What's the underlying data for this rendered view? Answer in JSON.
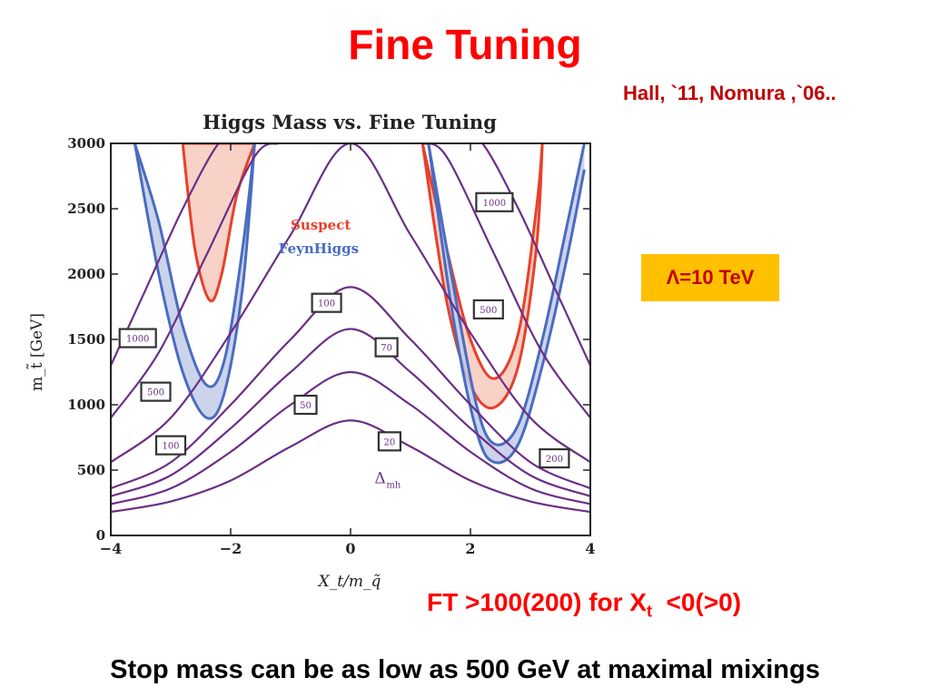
{
  "slide": {
    "title": "Fine Tuning",
    "citation": "Hall, `11, Nomura ,`06..",
    "lambda_label": "Λ=10 TeV",
    "ft_note_main": "FT >100(200) for X",
    "ft_note_sub": "t",
    "ft_note_tail": "  <0(>0)",
    "conclusion": "Stop mass can be as low as 500 GeV at maximal mixings"
  },
  "colors": {
    "title": "#ff0000",
    "citation": "#c00000",
    "lambda_bg": "#ffc000",
    "suspect": "#e8402a",
    "suspect_fill": "#f7c9bd",
    "feynhiggs": "#4a6cc0",
    "feynhiggs_fill": "#c3cde8",
    "contour": "#6b2e86",
    "overlap_fill": "#c9a7c4"
  },
  "chart_data": {
    "type": "line",
    "title": "Higgs Mass vs. Fine Tuning",
    "xlabel": "X_t/m_q̃",
    "ylabel": "m_t̃ [GeV]",
    "xlim": [
      -4,
      4
    ],
    "ylim": [
      0,
      3000
    ],
    "xticks": [
      "-4",
      "-2",
      "0",
      "2",
      "4"
    ],
    "yticks": [
      "0",
      "500",
      "1000",
      "1500",
      "2000",
      "2500",
      "3000"
    ],
    "legend": {
      "placement": "center",
      "entries": [
        "Suspect",
        "FeynHiggs"
      ]
    },
    "contour_symbol": "Δ_mh",
    "series": [
      {
        "name": "Δ",
        "level": 20,
        "x": [
          -4,
          -3,
          -2,
          -1,
          0,
          1,
          2,
          3,
          4
        ],
        "values": [
          180,
          260,
          420,
          680,
          880,
          680,
          420,
          260,
          180
        ]
      },
      {
        "name": "Δ",
        "level": 50,
        "x": [
          -4,
          -3,
          -2,
          -1,
          0,
          1,
          2,
          3,
          4
        ],
        "values": [
          240,
          360,
          640,
          1000,
          1250,
          1000,
          640,
          360,
          240
        ]
      },
      {
        "name": "Δ",
        "level": 70,
        "x": [
          -4,
          -3,
          -2,
          -1,
          0,
          1,
          2,
          3,
          4
        ],
        "values": [
          300,
          460,
          820,
          1250,
          1580,
          1250,
          820,
          460,
          300
        ]
      },
      {
        "name": "Δ",
        "level": 100,
        "x": [
          -4,
          -3,
          -2,
          -1,
          0,
          1,
          2,
          3,
          4
        ],
        "values": [
          360,
          560,
          1000,
          1500,
          1900,
          1500,
          1000,
          560,
          360
        ]
      },
      {
        "name": "Δ",
        "level": 200,
        "x": [
          -4,
          -3,
          -2,
          -1,
          0,
          1,
          2,
          3,
          4
        ],
        "values": [
          560,
          900,
          1550,
          2300,
          3000,
          2300,
          1550,
          900,
          560
        ]
      },
      {
        "name": "Δ",
        "level": 500,
        "x": [
          -4,
          -3.2,
          -2.4,
          -1.6,
          -1.2
        ],
        "values": [
          900,
          1400,
          2150,
          2900,
          3000
        ]
      },
      {
        "name": "Δ",
        "level": 1000,
        "x": [
          -4,
          -3.4,
          -2.8,
          -2.2,
          -1.9
        ],
        "values": [
          1300,
          1900,
          2500,
          3000,
          3000
        ]
      }
    ],
    "contour_labels": [
      {
        "text": "1000",
        "x": -3.55,
        "y": 1510
      },
      {
        "text": "500",
        "x": -3.25,
        "y": 1100
      },
      {
        "text": "100",
        "x": -3.0,
        "y": 690
      },
      {
        "text": "100",
        "x": -0.4,
        "y": 1780
      },
      {
        "text": "70",
        "x": 0.6,
        "y": 1440
      },
      {
        "text": "50",
        "x": -0.75,
        "y": 1000
      },
      {
        "text": "20",
        "x": 0.65,
        "y": 720
      },
      {
        "text": "1000",
        "x": 2.4,
        "y": 2550
      },
      {
        "text": "500",
        "x": 2.3,
        "y": 1730
      },
      {
        "text": "200",
        "x": 3.4,
        "y": 590
      }
    ],
    "bands": [
      {
        "name": "Suspect",
        "side": "left",
        "x": [
          -2.8,
          -2.6,
          -2.35,
          -2.15,
          -1.9,
          -1.6
        ],
        "lower": [
          3000,
          2200,
          1800,
          2000,
          2600,
          3000
        ],
        "upper": [
          3000,
          3000,
          3000,
          3000,
          3000,
          3000
        ]
      },
      {
        "name": "FeynHiggs",
        "side": "left",
        "x": [
          -3.6,
          -3.2,
          -2.8,
          -2.4,
          -2.1,
          -1.8,
          -1.6
        ],
        "lower": [
          3000,
          2000,
          1250,
          900,
          1100,
          1900,
          3000
        ],
        "upper": [
          3000,
          2400,
          1600,
          1150,
          1350,
          2200,
          3000
        ]
      },
      {
        "name": "Suspect",
        "side": "right",
        "x": [
          1.2,
          1.6,
          2.0,
          2.4,
          2.8,
          3.1,
          3.2
        ],
        "lower": [
          3000,
          1800,
          1150,
          980,
          1300,
          2200,
          3000
        ],
        "upper": [
          3000,
          2200,
          1500,
          1200,
          1550,
          2500,
          3000
        ]
      },
      {
        "name": "FeynHiggs",
        "side": "right",
        "x": [
          1.3,
          1.7,
          2.1,
          2.4,
          2.8,
          3.2,
          3.6,
          3.9
        ],
        "lower": [
          3000,
          1700,
          800,
          560,
          700,
          1300,
          2100,
          2800
        ],
        "upper": [
          3000,
          1950,
          1000,
          700,
          850,
          1500,
          2350,
          3000
        ]
      }
    ]
  }
}
